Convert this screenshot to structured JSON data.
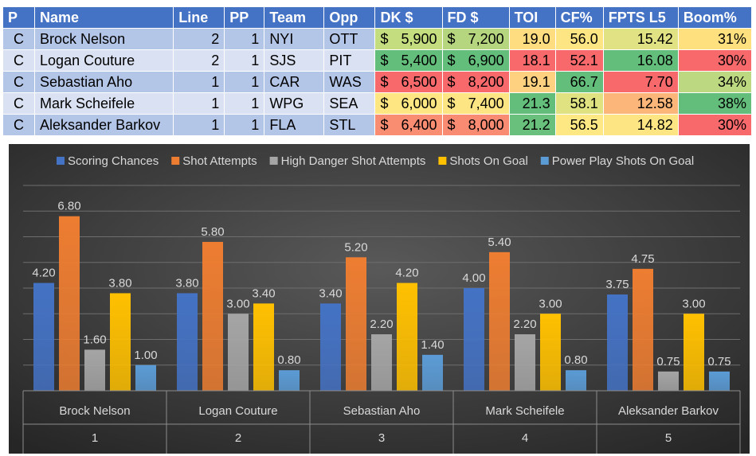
{
  "table": {
    "headers": [
      "P",
      "Name",
      "Line",
      "PP",
      "Team",
      "Opp",
      "DK $",
      "FD $",
      "TOI",
      "CF%",
      "FPTS L5",
      "Boom%"
    ],
    "rows": [
      {
        "p": "C",
        "name": "Brock Nelson",
        "line": "2",
        "pp": "1",
        "team": "NYI",
        "opp": "OTT",
        "dk": "5,900",
        "fd": "7,200",
        "toi": "19.0",
        "cf": "56.0",
        "fpts": "15.42",
        "boom": "31%",
        "colors": {
          "dk": "#c3dd7f",
          "fd": "#b5d67f",
          "toi": "#fedd81",
          "cf": "#fee583",
          "fpts": "#e1e283",
          "boom": "#fee07f"
        }
      },
      {
        "p": "C",
        "name": "Logan Couture",
        "line": "2",
        "pp": "1",
        "team": "SJS",
        "opp": "PIT",
        "dk": "5,400",
        "fd": "6,900",
        "toi": "18.1",
        "cf": "52.1",
        "fpts": "16.08",
        "boom": "30%",
        "colors": {
          "dk": "#63be7b",
          "fd": "#63be7b",
          "toi": "#f8696b",
          "cf": "#f8696b",
          "fpts": "#63be7b",
          "boom": "#f8696b"
        }
      },
      {
        "p": "C",
        "name": "Sebastian Aho",
        "line": "1",
        "pp": "1",
        "team": "CAR",
        "opp": "WAS",
        "dk": "6,500",
        "fd": "8,200",
        "toi": "19.1",
        "cf": "66.7",
        "fpts": "7.70",
        "boom": "34%",
        "colors": {
          "dk": "#f8696b",
          "fd": "#f8696b",
          "toi": "#fdd17f",
          "cf": "#63be7b",
          "fpts": "#f8696b",
          "boom": "#bcd881"
        }
      },
      {
        "p": "C",
        "name": "Mark Scheifele",
        "line": "1",
        "pp": "1",
        "team": "WPG",
        "opp": "SEA",
        "dk": "6,000",
        "fd": "7,400",
        "toi": "21.3",
        "cf": "58.1",
        "fpts": "12.58",
        "boom": "38%",
        "colors": {
          "dk": "#fee683",
          "fd": "#fee583",
          "toi": "#63be7b",
          "cf": "#e0e282",
          "fpts": "#fcb679",
          "boom": "#63be7b"
        }
      },
      {
        "p": "C",
        "name": "Aleksander Barkov",
        "line": "1",
        "pp": "1",
        "team": "FLA",
        "opp": "STL",
        "dk": "6,400",
        "fd": "8,000",
        "toi": "21.2",
        "cf": "56.5",
        "fpts": "14.82",
        "boom": "30%",
        "colors": {
          "dk": "#f98d72",
          "fd": "#f98b72",
          "toi": "#68c07c",
          "cf": "#fee884",
          "fpts": "#fee583",
          "boom": "#f8696b"
        }
      }
    ],
    "currency_symbol": "$"
  },
  "chart_data": {
    "type": "bar",
    "title": "",
    "xlabel": "",
    "ylabel": "",
    "ylim": [
      0,
      8
    ],
    "grid": true,
    "legend_position": "top",
    "categories": [
      {
        "name": "Brock Nelson",
        "index": "1"
      },
      {
        "name": "Logan Couture",
        "index": "2"
      },
      {
        "name": "Sebastian Aho",
        "index": "3"
      },
      {
        "name": "Mark Scheifele",
        "index": "4"
      },
      {
        "name": "Aleksander Barkov",
        "index": "5"
      }
    ],
    "series": [
      {
        "name": "Scoring Chances",
        "color": "#4472c4",
        "values": [
          4.2,
          3.8,
          3.4,
          4.0,
          3.75
        ],
        "labels": [
          "4.20",
          "3.80",
          "3.40",
          "4.00",
          "3.75"
        ]
      },
      {
        "name": "Shot Attempts",
        "color": "#ed7d31",
        "values": [
          6.8,
          5.8,
          5.2,
          5.4,
          4.75
        ],
        "labels": [
          "6.80",
          "5.80",
          "5.20",
          "5.40",
          "4.75"
        ]
      },
      {
        "name": "High Danger Shot Attempts",
        "color": "#a5a5a5",
        "values": [
          1.6,
          3.0,
          2.2,
          2.2,
          0.75
        ],
        "labels": [
          "1.60",
          "3.00",
          "2.20",
          "2.20",
          "0.75"
        ]
      },
      {
        "name": "Shots On Goal",
        "color": "#ffc000",
        "values": [
          3.8,
          3.4,
          4.2,
          3.0,
          3.0
        ],
        "labels": [
          "3.80",
          "3.40",
          "4.20",
          "3.00",
          "3.00"
        ]
      },
      {
        "name": "Power Play Shots On Goal",
        "color": "#5b9bd5",
        "values": [
          1.0,
          0.8,
          1.4,
          0.8,
          0.75
        ],
        "labels": [
          "1.00",
          "0.80",
          "1.40",
          "0.80",
          "0.75"
        ]
      }
    ],
    "background_colors": [
      "#595959",
      "#262626"
    ],
    "text_color": "#d9d9d9"
  }
}
